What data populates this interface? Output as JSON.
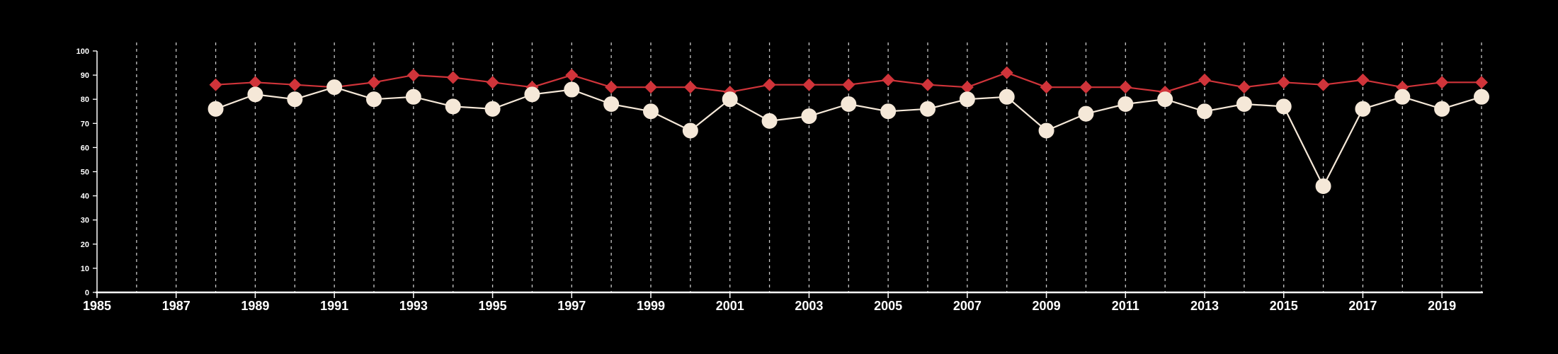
{
  "chart_data": {
    "type": "line",
    "title": "",
    "xlabel": "",
    "ylabel": "",
    "xlim": [
      1985,
      2020
    ],
    "ylim": [
      0,
      100
    ],
    "x_ticks": [
      1985,
      1987,
      1989,
      1991,
      1993,
      1995,
      1997,
      1999,
      2001,
      2003,
      2005,
      2007,
      2009,
      2011,
      2013,
      2015,
      2017,
      2019
    ],
    "y_ticks": [
      0,
      10,
      20,
      30,
      40,
      50,
      60,
      70,
      80,
      90,
      100
    ],
    "grid": "vertical dashed lines at each year from 1986 to 2020",
    "legend": "none",
    "x": [
      1988,
      1989,
      1990,
      1991,
      1992,
      1993,
      1994,
      1995,
      1996,
      1997,
      1998,
      1999,
      2000,
      2001,
      2002,
      2003,
      2004,
      2005,
      2006,
      2007,
      2008,
      2009,
      2010,
      2011,
      2012,
      2013,
      2014,
      2015,
      2016,
      2017,
      2018,
      2019,
      2020
    ],
    "series": [
      {
        "marker": "diamond",
        "color": "#d0343a",
        "values": [
          86,
          87,
          86,
          85,
          87,
          90,
          89,
          87,
          85,
          90,
          85,
          85,
          85,
          83,
          86,
          86,
          86,
          88,
          86,
          85,
          91,
          85,
          85,
          85,
          83,
          88,
          85,
          87,
          86,
          88,
          85,
          87,
          87
        ]
      },
      {
        "marker": "circle",
        "color": "#f5e8d8",
        "values": [
          76,
          82,
          80,
          85,
          80,
          81,
          77,
          76,
          82,
          84,
          78,
          75,
          67,
          80,
          71,
          73,
          78,
          75,
          76,
          80,
          81,
          67,
          74,
          78,
          80,
          75,
          78,
          77,
          44,
          76,
          81,
          76,
          81
        ]
      }
    ]
  }
}
